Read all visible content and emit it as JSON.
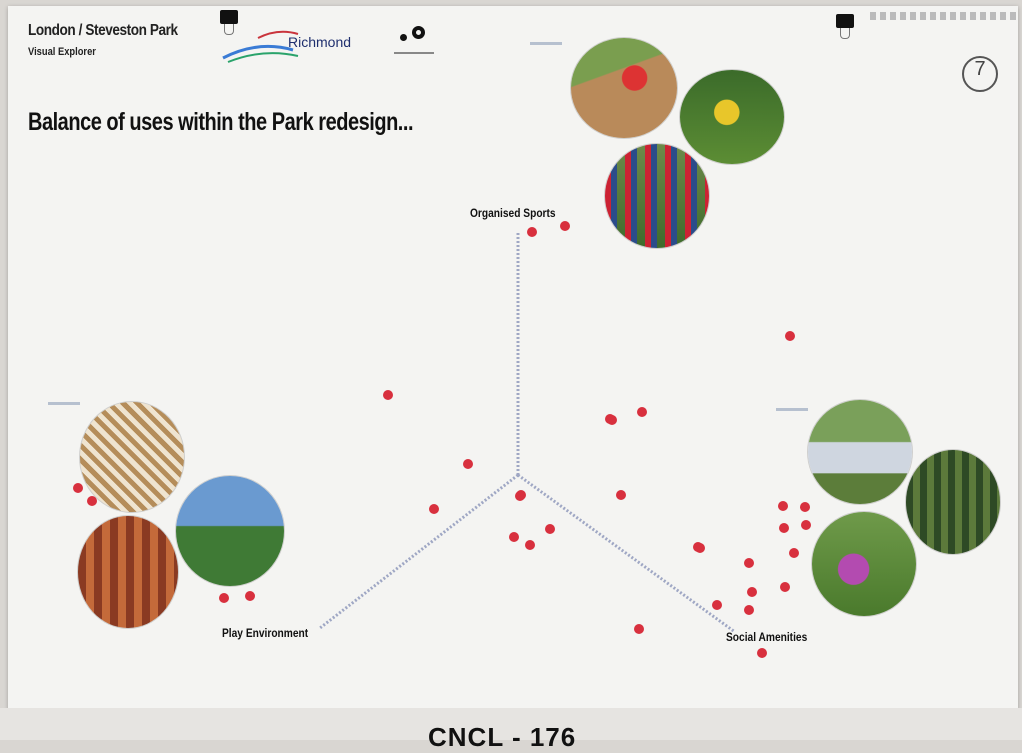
{
  "header": {
    "place": "London / Steveston Park",
    "subtitle": "Visual Explorer",
    "title": "Balance of uses within the Park redesign..."
  },
  "logos": {
    "richmond": "Richmond"
  },
  "page_number": "7",
  "footer_code": "CNCL - 176",
  "axes": {
    "top": "Organised Sports",
    "left": "Play Environment",
    "right": "Social Amenities"
  },
  "photos": {
    "sports": [
      "baseball-batter-photo",
      "soccer-player-photo",
      "soccer-team-photo"
    ],
    "play": [
      "rope-climb-photo",
      "climbing-frame-photo",
      "wooden-play-structure-photo"
    ],
    "social": [
      "park-bench-seniors-photo",
      "trees-path-photo",
      "picnic-group-photo"
    ]
  },
  "colors": {
    "dot": "#d8303e",
    "axis": "#9fa7c4",
    "board": "#f4f4f2"
  },
  "votes": [
    {
      "name": "vote-dot-1"
    },
    {
      "name": "vote-dot-2"
    },
    {
      "name": "vote-dot-3"
    },
    {
      "name": "vote-dot-4"
    },
    {
      "name": "vote-dot-5"
    },
    {
      "name": "vote-dot-6"
    },
    {
      "name": "vote-dot-7"
    },
    {
      "name": "vote-dot-8"
    },
    {
      "name": "vote-dot-9"
    },
    {
      "name": "vote-dot-10"
    },
    {
      "name": "vote-dot-11"
    },
    {
      "name": "vote-dot-12"
    },
    {
      "name": "vote-dot-13"
    },
    {
      "name": "vote-dot-14"
    },
    {
      "name": "vote-dot-15"
    },
    {
      "name": "vote-dot-16"
    },
    {
      "name": "vote-dot-17"
    },
    {
      "name": "vote-dot-18"
    },
    {
      "name": "vote-dot-19"
    },
    {
      "name": "vote-dot-20"
    },
    {
      "name": "vote-dot-21"
    },
    {
      "name": "vote-dot-22"
    },
    {
      "name": "vote-dot-23"
    },
    {
      "name": "vote-dot-24"
    },
    {
      "name": "vote-dot-25"
    },
    {
      "name": "vote-dot-26"
    },
    {
      "name": "vote-dot-27"
    },
    {
      "name": "vote-dot-28"
    },
    {
      "name": "vote-dot-29"
    },
    {
      "name": "vote-dot-30"
    },
    {
      "name": "vote-dot-31"
    },
    {
      "name": "vote-dot-32"
    },
    {
      "name": "vote-dot-33"
    }
  ]
}
